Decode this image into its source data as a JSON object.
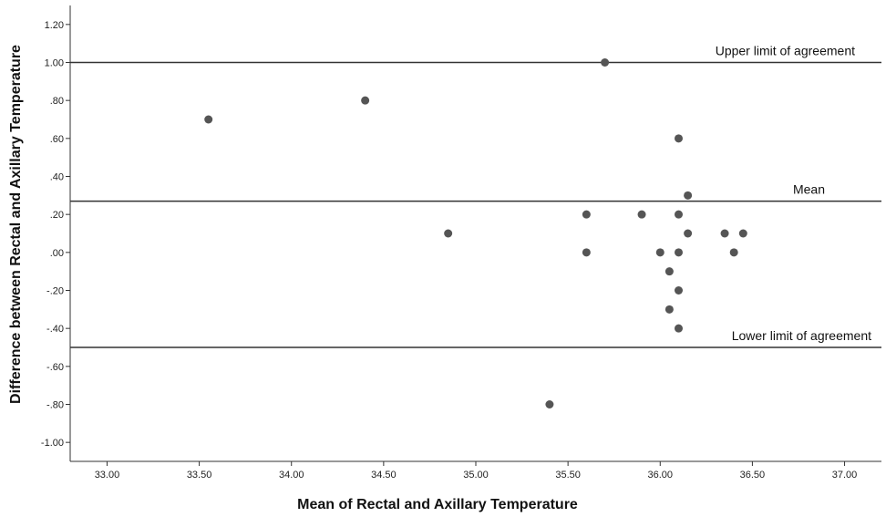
{
  "chart_data": {
    "type": "scatter",
    "title": "",
    "xlabel": "Mean of Rectal and Axillary Temperature",
    "ylabel": "Difference between Rectal and Axillary Temperature",
    "xlim": [
      32.8,
      37.2
    ],
    "ylim": [
      -1.1,
      1.3
    ],
    "xticks": [
      33.0,
      33.5,
      34.0,
      34.5,
      35.0,
      35.5,
      36.0,
      36.5,
      37.0
    ],
    "xtick_labels": [
      "33.00",
      "33.50",
      "34.00",
      "34.50",
      "35.00",
      "35.50",
      "36.00",
      "36.50",
      "37.00"
    ],
    "yticks": [
      1.2,
      1.0,
      0.8,
      0.6,
      0.4,
      0.2,
      0.0,
      -0.2,
      -0.4,
      -0.6,
      -0.8,
      -1.0
    ],
    "ytick_labels": [
      "1.20",
      "1.00",
      ".80",
      ".60",
      ".40",
      ".20",
      ".00",
      "-.20",
      "-.40",
      "-.60",
      "-.80",
      "-1.00"
    ],
    "grid": false,
    "points": [
      {
        "x": 33.55,
        "y": 0.7
      },
      {
        "x": 34.4,
        "y": 0.8
      },
      {
        "x": 34.85,
        "y": 0.1
      },
      {
        "x": 35.4,
        "y": -0.8
      },
      {
        "x": 35.6,
        "y": 0.2
      },
      {
        "x": 35.6,
        "y": 0.0
      },
      {
        "x": 35.7,
        "y": 1.0
      },
      {
        "x": 35.9,
        "y": 0.2
      },
      {
        "x": 36.0,
        "y": 0.0
      },
      {
        "x": 36.05,
        "y": -0.1
      },
      {
        "x": 36.05,
        "y": -0.3
      },
      {
        "x": 36.1,
        "y": 0.6
      },
      {
        "x": 36.1,
        "y": 0.2
      },
      {
        "x": 36.1,
        "y": 0.0
      },
      {
        "x": 36.1,
        "y": -0.2
      },
      {
        "x": 36.1,
        "y": -0.4
      },
      {
        "x": 36.15,
        "y": 0.3
      },
      {
        "x": 36.15,
        "y": 0.1
      },
      {
        "x": 36.35,
        "y": 0.1
      },
      {
        "x": 36.4,
        "y": 0.0
      },
      {
        "x": 36.45,
        "y": 0.1
      }
    ],
    "reference_lines": [
      {
        "label": "Upper limit of agreement",
        "y": 1.0
      },
      {
        "label": "Mean",
        "y": 0.27
      },
      {
        "label": "Lower limit of agreement",
        "y": -0.5
      }
    ],
    "colors": {
      "point": "#555555",
      "line": "#333333",
      "axis": "#333333"
    }
  }
}
